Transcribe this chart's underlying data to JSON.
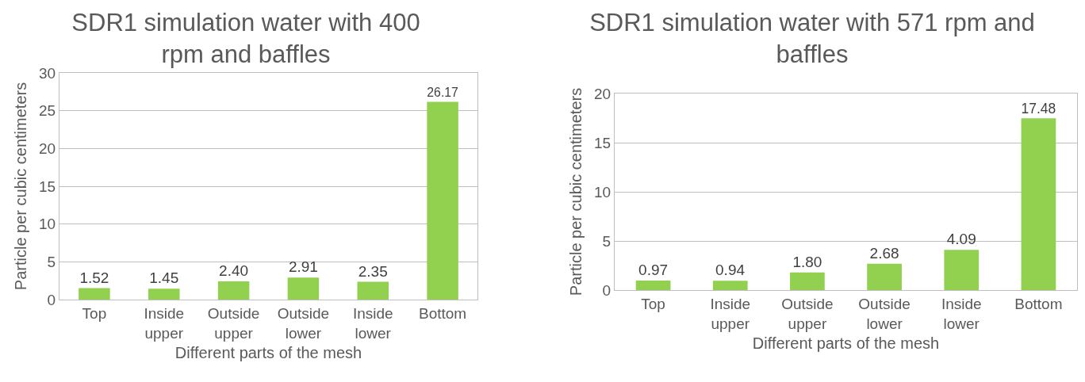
{
  "chart_data": [
    {
      "type": "bar",
      "title": "SDR1 simulation water with 400 rpm and baffles",
      "xlabel": "Different parts of the mesh",
      "ylabel": "Particle per cubic centimeters",
      "categories": [
        "Top",
        "Inside upper",
        "Outside upper",
        "Outside lower",
        "Inside lower",
        "Bottom"
      ],
      "values": [
        1.52,
        1.45,
        2.4,
        2.91,
        2.35,
        26.17
      ],
      "value_labels": [
        "1.52",
        "1.45",
        "2.40",
        "2.91",
        "2.35",
        "26.17"
      ],
      "color": "#92d050",
      "ylim": [
        0,
        30
      ],
      "yticks": [
        0,
        5,
        10,
        15,
        20,
        25,
        30
      ],
      "grid": "y"
    },
    {
      "type": "bar",
      "title": "SDR1 simulation water with 571 rpm and baffles",
      "xlabel": "Different parts of the mesh",
      "ylabel": "Particle per cubic centimeters",
      "categories": [
        "Top",
        "Inside upper",
        "Outside upper",
        "Outside lower",
        "Inside lower",
        "Bottom"
      ],
      "values": [
        0.97,
        0.94,
        1.8,
        2.68,
        4.09,
        17.48
      ],
      "value_labels": [
        "0.97",
        "0.94",
        "1.80",
        "2.68",
        "4.09",
        "17.48"
      ],
      "color": "#92d050",
      "ylim": [
        0,
        20
      ],
      "yticks": [
        0,
        5,
        10,
        15,
        20
      ],
      "grid": "y"
    }
  ]
}
